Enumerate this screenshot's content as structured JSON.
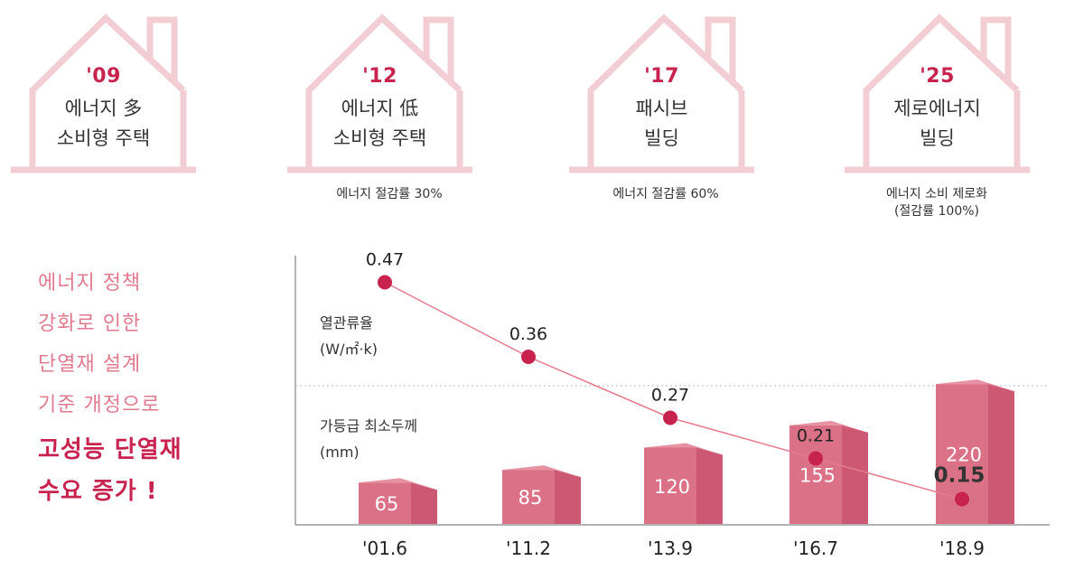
{
  "houses": [
    {
      "year": "'09",
      "line1": "에너지 多",
      "line2": "소비형 주택"
    },
    {
      "year": "'12",
      "line1": "에너지 低",
      "line2": "소비형 주택"
    },
    {
      "year": "'17",
      "line1": "패시브",
      "line2": "빌딩"
    },
    {
      "year": "'25",
      "line1": "제로에너지",
      "line2": "빌딩"
    }
  ],
  "notes": {
    "n1": "에너지 절감률 30%",
    "n2": "에너지 절감률 60%",
    "n3a": "에너지 소비 제로화",
    "n3b": "(절감률 100%)"
  },
  "slogan": {
    "lines": [
      "에너지 정책",
      "강화로 인한",
      "단열재 설계",
      "기준 개정으로"
    ],
    "strong": [
      "고성능 단열재",
      "수요 증가 !"
    ]
  },
  "colors": {
    "house": "#f2cdd3",
    "accent": "#c8234f",
    "line": "#e57b8d",
    "bar_front": "#db7186",
    "bar_side": "#cd5873",
    "bar_top": "#e692a2"
  },
  "chart_data": {
    "type": "bar",
    "categories": [
      "'01.6",
      "'11.2",
      "'13.9",
      "'16.7",
      "'18.9"
    ],
    "bar_label": "가등급 최소두께",
    "bar_unit": "(mm)",
    "bar_values": [
      65,
      85,
      120,
      155,
      220
    ],
    "line_label": "열관류율",
    "line_unit": "(W/㎡·k)",
    "line_values": [
      0.47,
      0.36,
      0.27,
      0.21,
      0.15
    ],
    "line_value_labels": [
      "0.47",
      "0.36",
      "0.27",
      "0.21",
      "0.15"
    ]
  }
}
